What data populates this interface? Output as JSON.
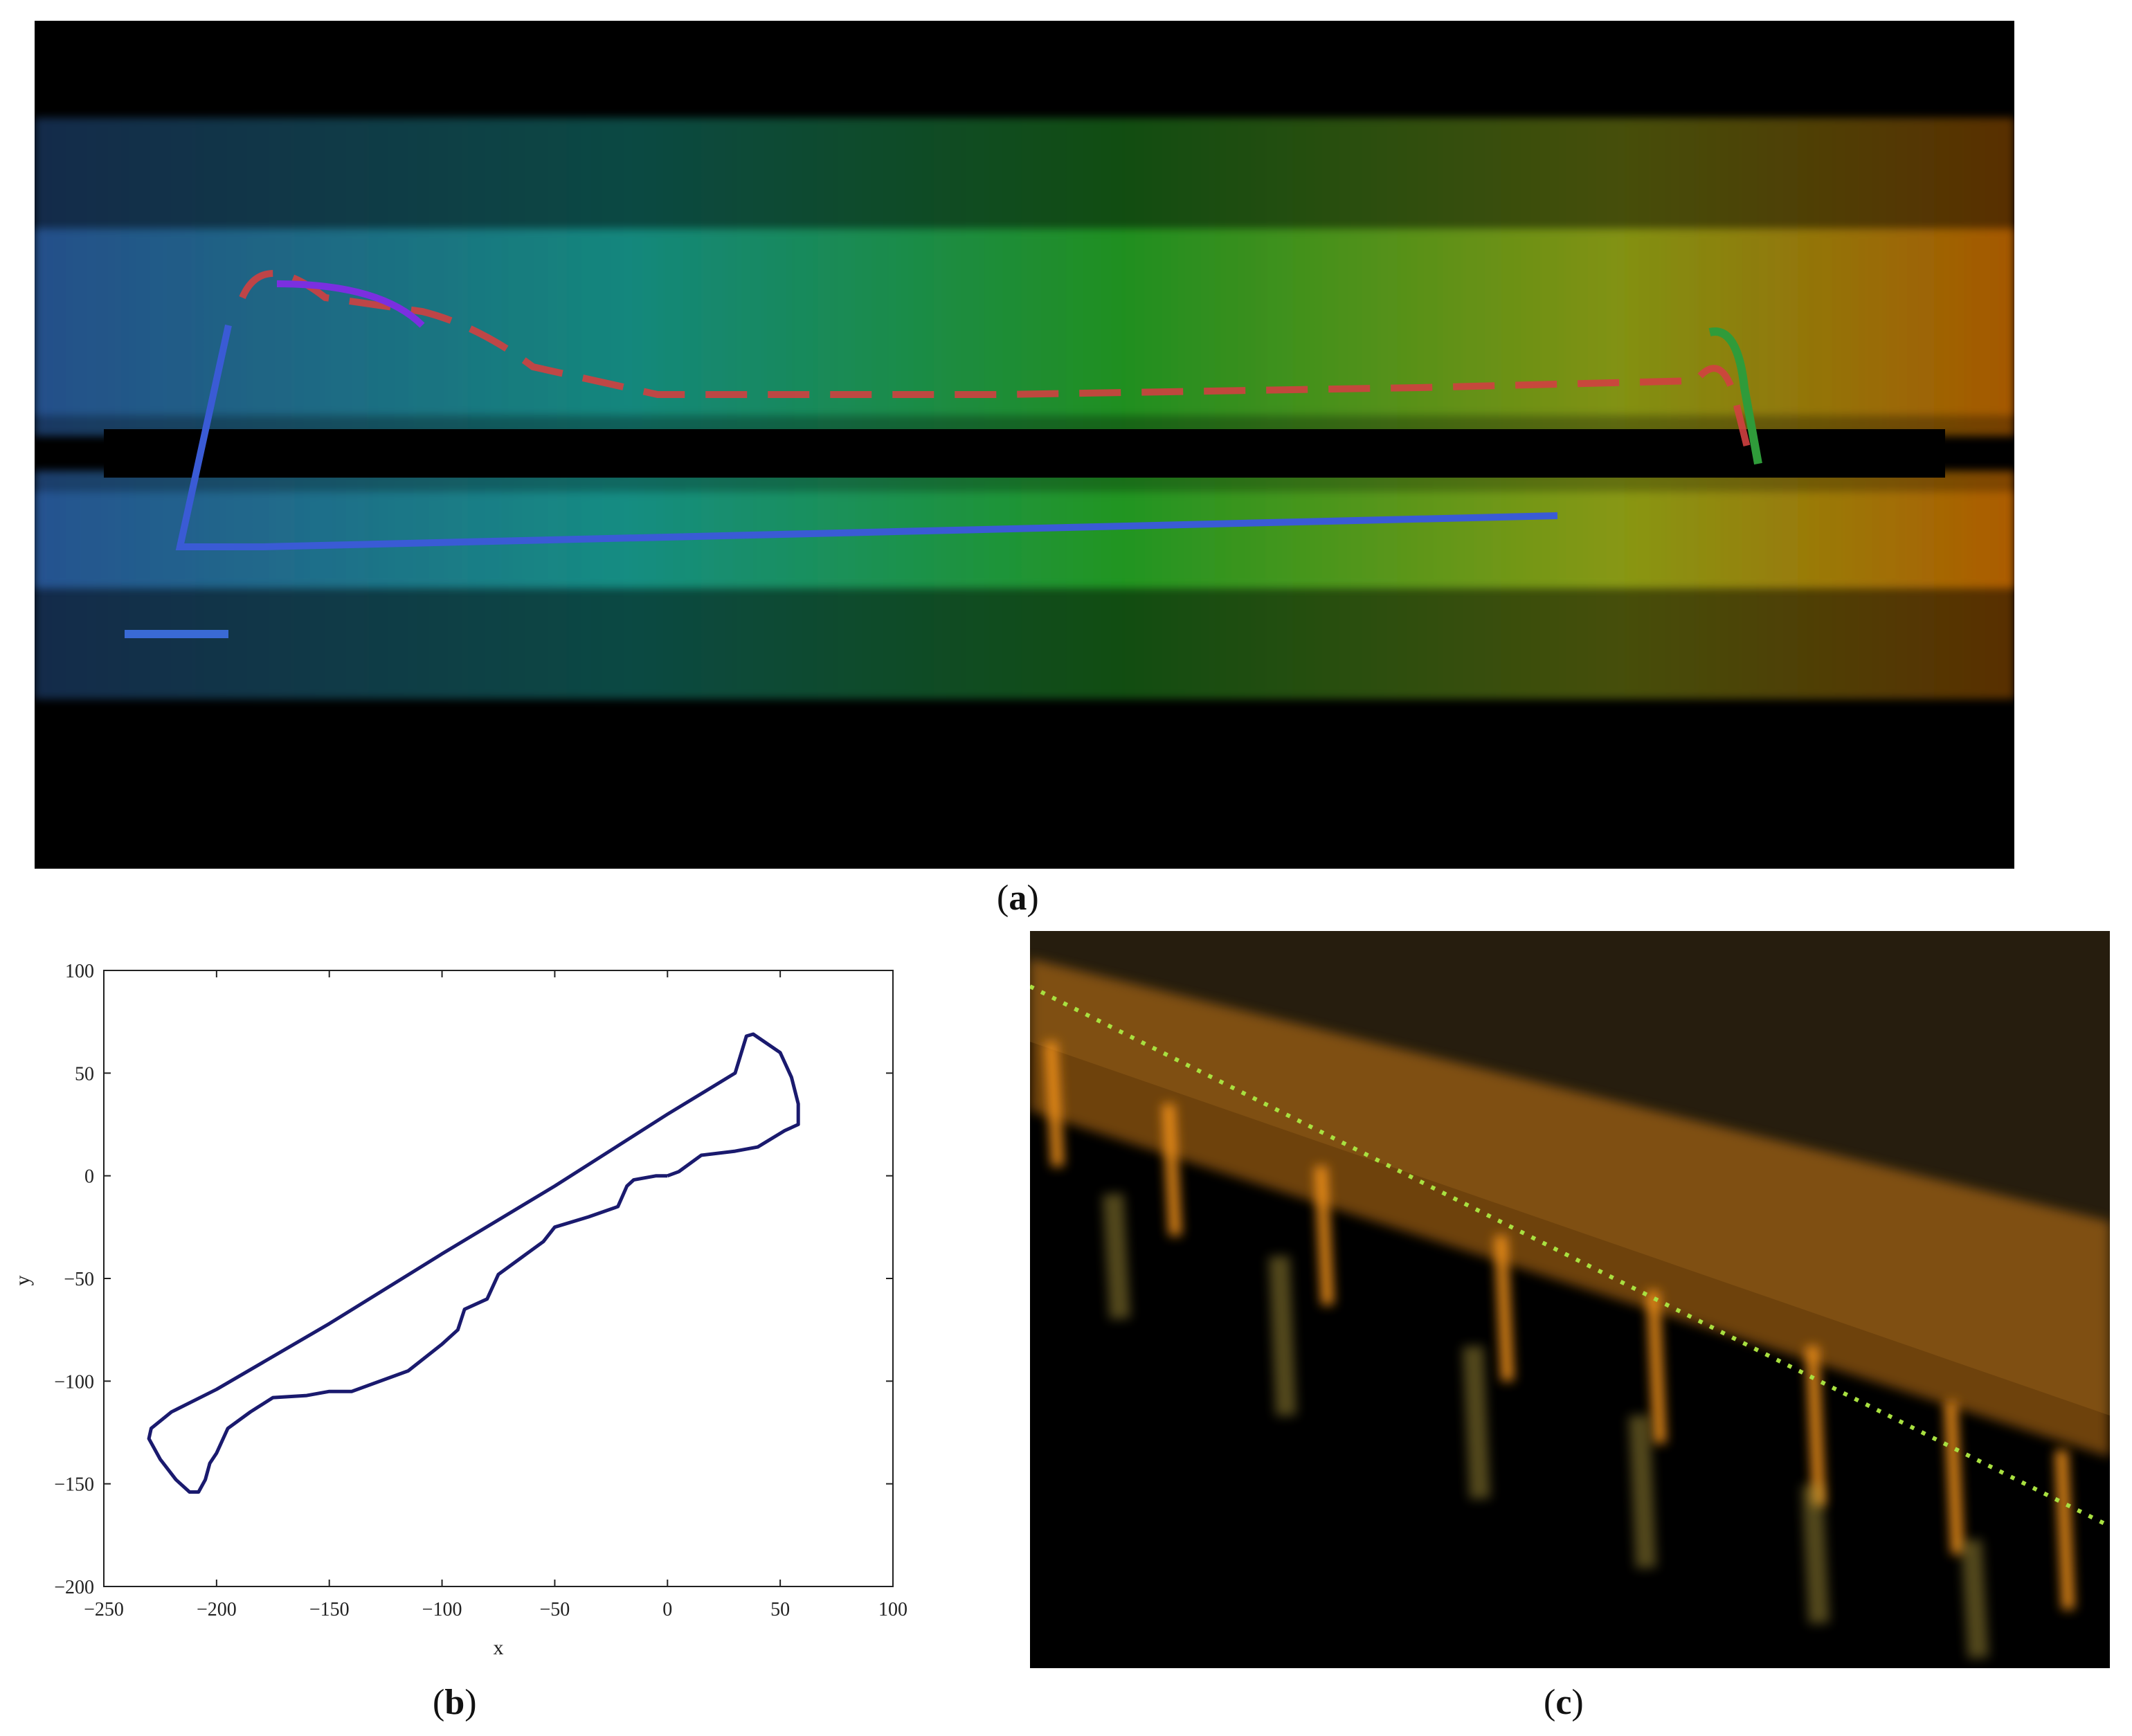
{
  "captions": {
    "a": {
      "open": "(",
      "letter": "a",
      "close": ")"
    },
    "b": {
      "open": "(",
      "letter": "b",
      "close": ")"
    },
    "c": {
      "open": "(",
      "letter": "c",
      "close": ")"
    }
  },
  "panel_a": {
    "image": "lidar-point-cloud-top-view",
    "colors": {
      "background": "#000000",
      "low": "#3a7bd5",
      "mid": "#33dd33",
      "high": "#ff8800",
      "trajectory_start": "#7b2fe0",
      "trajectory_end": "#2f9b3a"
    }
  },
  "panel_c": {
    "image": "lidar-point-cloud-tree-row-perspective",
    "colors": {
      "background": "#000000",
      "trunk": "#ff9a1a",
      "foliage": "#c8a020",
      "trajectory": "#a8e040"
    }
  },
  "chart_data": {
    "type": "line",
    "title": "",
    "xlabel": "x",
    "ylabel": "y",
    "xlim": [
      -250,
      100
    ],
    "ylim": [
      -200,
      100
    ],
    "xticks": [
      -250,
      -200,
      -150,
      -100,
      -50,
      0,
      50,
      100
    ],
    "yticks": [
      -200,
      -150,
      -100,
      -50,
      0,
      50,
      100
    ],
    "xtick_labels": [
      "−250",
      "−200",
      "−150",
      "−100",
      "−50",
      "0",
      "50",
      "100"
    ],
    "ytick_labels": [
      "−200",
      "−150",
      "−100",
      "−50",
      "0",
      "50",
      "100"
    ],
    "grid": false,
    "line_color": "#1a1a6e",
    "series": [
      {
        "values_x": [
          0,
          -5,
          -15,
          -18,
          -22,
          -35,
          -50,
          -55,
          -65,
          -75,
          -80,
          -90,
          -93,
          -100,
          -115,
          -140,
          -150,
          -160,
          -175,
          -185,
          -195,
          -200,
          -203,
          -205,
          -208,
          -212,
          -218,
          -225,
          -230,
          -229,
          -220,
          -200,
          -150,
          -100,
          -50,
          0,
          30,
          35,
          38,
          50,
          55,
          58,
          58,
          52,
          40,
          30,
          15,
          5,
          0
        ],
        "values_y": [
          0,
          0,
          -2,
          -5,
          -15,
          -20,
          -25,
          -32,
          -40,
          -48,
          -60,
          -65,
          -75,
          -82,
          -95,
          -105,
          -105,
          -107,
          -108,
          -115,
          -123,
          -135,
          -140,
          -148,
          -154,
          -154,
          -148,
          -138,
          -128,
          -123,
          -115,
          -104,
          -72,
          -38,
          -5,
          30,
          50,
          68,
          69,
          60,
          48,
          35,
          25,
          22,
          14,
          12,
          10,
          2,
          0
        ]
      }
    ]
  }
}
